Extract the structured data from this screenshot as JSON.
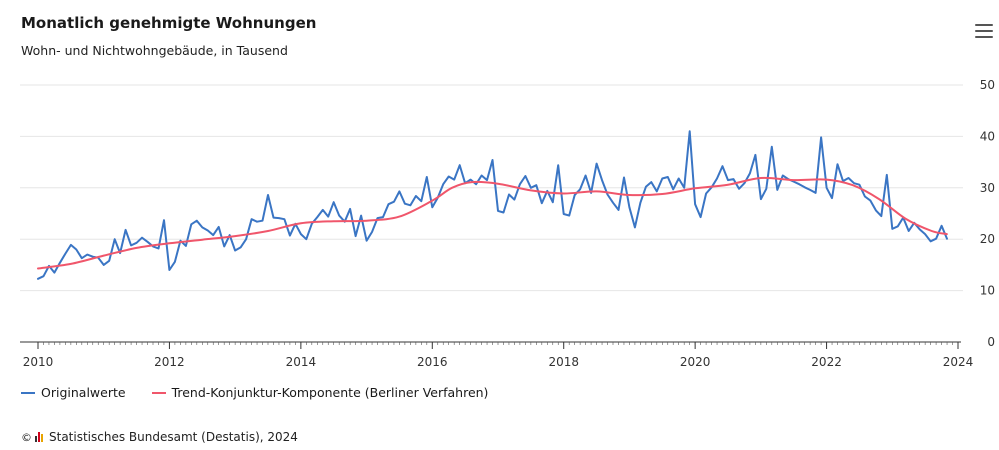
{
  "header": {
    "title": "Monatlich genehmigte Wohnungen",
    "subtitle": "Wohn- und Nichtwohngebäude, in Tausend",
    "menu_icon": "hamburger-menu-icon"
  },
  "legend": {
    "items": [
      {
        "label": "Originalwerte",
        "color": "#3a75c4"
      },
      {
        "label": "Trend-Konjunktur-Komponente (Berliner Verfahren)",
        "color": "#f0566b"
      }
    ]
  },
  "footer": {
    "copyright_symbol": "©",
    "source": "Statistisches Bundesamt (Destatis), 2024",
    "logo_icon": "destatis-logo-icon"
  },
  "chart_data": {
    "type": "line",
    "x_axis": {
      "ticks": [
        "2010",
        "2012",
        "2014",
        "2016",
        "2018",
        "2020",
        "2022",
        "2024"
      ],
      "range": [
        2010,
        2024
      ]
    },
    "y_axis": {
      "ticks": [
        "0",
        "10",
        "20",
        "30",
        "40",
        "50"
      ],
      "range": [
        0,
        50
      ],
      "position": "right"
    },
    "grid": true,
    "legend_position": "bottom-left",
    "series": [
      {
        "name": "Originalwerte",
        "color": "#3a75c4",
        "x_start": "2010-01",
        "frequency": "monthly",
        "values": [
          12.3,
          12.8,
          14.8,
          13.5,
          15.4,
          17.2,
          18.9,
          18.0,
          16.3,
          17.0,
          16.6,
          16.4,
          15.0,
          15.8,
          20.0,
          17.3,
          21.8,
          18.8,
          19.3,
          20.3,
          19.5,
          18.6,
          18.2,
          23.7,
          14.0,
          15.6,
          19.7,
          18.7,
          22.9,
          23.6,
          22.3,
          21.7,
          20.8,
          22.4,
          18.6,
          20.8,
          17.8,
          18.4,
          20.0,
          23.9,
          23.4,
          23.6,
          28.6,
          24.2,
          24.1,
          23.9,
          20.7,
          23.0,
          21.0,
          20.0,
          23.0,
          24.3,
          25.7,
          24.4,
          27.2,
          24.6,
          23.4,
          25.9,
          20.6,
          24.6,
          19.7,
          21.4,
          24.1,
          24.3,
          26.8,
          27.3,
          29.3,
          26.9,
          26.6,
          28.4,
          27.4,
          32.1,
          26.2,
          28.1,
          30.7,
          32.2,
          31.6,
          34.4,
          30.9,
          31.6,
          30.7,
          32.4,
          31.5,
          35.4,
          25.5,
          25.2,
          28.7,
          27.7,
          30.7,
          32.3,
          30.0,
          30.5,
          27.0,
          29.4,
          27.2,
          34.4,
          24.9,
          24.6,
          28.6,
          29.7,
          32.4,
          29.0,
          34.7,
          31.5,
          28.7,
          27.1,
          25.7,
          32.0,
          26.2,
          22.3,
          27.1,
          30.2,
          31.1,
          29.3,
          31.8,
          32.1,
          29.7,
          31.8,
          30.0,
          41.0,
          26.8,
          24.3,
          28.9,
          30.1,
          31.8,
          34.2,
          31.5,
          31.7,
          29.8,
          30.9,
          32.8,
          36.4,
          27.8,
          29.8,
          38.0,
          29.6,
          32.4,
          31.7,
          31.2,
          30.7,
          30.1,
          29.6,
          29.0,
          39.8,
          30.0,
          28.0,
          34.6,
          31.3,
          31.9,
          30.9,
          30.6,
          28.3,
          27.5,
          25.6,
          24.5,
          32.5,
          22.0,
          22.5,
          24.2,
          21.6,
          23.2,
          21.9,
          21.0,
          19.6,
          20.1,
          22.6,
          20.1
        ]
      },
      {
        "name": "Trend-Konjunktur-Komponente (Berliner Verfahren)",
        "color": "#f0566b",
        "points": [
          [
            2010.0,
            14.3
          ],
          [
            2010.5,
            15.2
          ],
          [
            2011.0,
            16.8
          ],
          [
            2011.5,
            18.3
          ],
          [
            2012.0,
            19.2
          ],
          [
            2012.5,
            19.9
          ],
          [
            2013.0,
            20.6
          ],
          [
            2013.5,
            21.6
          ],
          [
            2014.0,
            23.1
          ],
          [
            2014.5,
            23.5
          ],
          [
            2015.0,
            23.6
          ],
          [
            2015.5,
            24.4
          ],
          [
            2016.0,
            27.5
          ],
          [
            2016.3,
            30.0
          ],
          [
            2016.6,
            31.1
          ],
          [
            2017.0,
            30.8
          ],
          [
            2017.5,
            29.5
          ],
          [
            2018.0,
            28.9
          ],
          [
            2018.5,
            29.3
          ],
          [
            2019.0,
            28.6
          ],
          [
            2019.5,
            28.8
          ],
          [
            2020.0,
            29.9
          ],
          [
            2020.5,
            30.6
          ],
          [
            2021.0,
            31.9
          ],
          [
            2021.5,
            31.5
          ],
          [
            2022.0,
            31.6
          ],
          [
            2022.4,
            30.5
          ],
          [
            2022.8,
            27.8
          ],
          [
            2023.2,
            24.0
          ],
          [
            2023.6,
            21.6
          ],
          [
            2023.83,
            21.0
          ]
        ]
      }
    ]
  }
}
